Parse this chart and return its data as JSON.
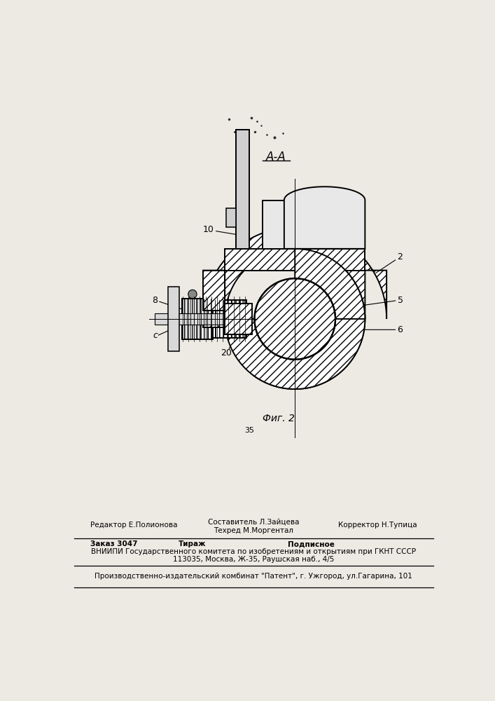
{
  "bg_color": "#ede9e3",
  "title_label": "А-А",
  "fig_label": "Фиг. 2",
  "fig_num": "35",
  "footer_line1_left": "Редактор Е.Полионова",
  "footer_line1_center_top": "Составитель Л.Зайцева",
  "footer_line1_center_bot": "Техред М.Моргентал",
  "footer_line1_right": "Корректор Н.Тупица",
  "footer_line2_left": "Заказ 3047",
  "footer_line2_center": "Тираж",
  "footer_line2_right": "Подписное",
  "footer_line3": "ВНИИПИ Государственного комитета по изобретениям и открытиям при ГКНТ СССР",
  "footer_line4": "113035, Москва, Ж-35, Раушская наб., 4/5",
  "footer_line5": "Производственно-издательский комбинат \"Патент\", г. Ужгород, ул.Гагарина, 101",
  "lw_main": 1.4,
  "lw_thin": 0.8,
  "hatch_density": "///",
  "label_fontsize": 9,
  "footer_fontsize": 7.5
}
